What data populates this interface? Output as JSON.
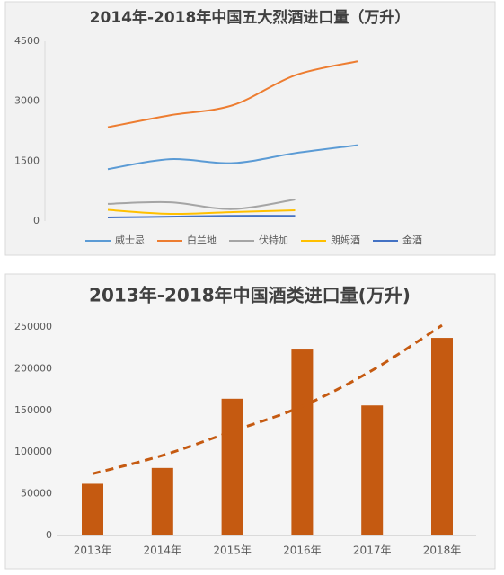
{
  "chart_data": [
    {
      "type": "line",
      "title": "2014年-2018年中国五大烈酒进口量（万升）",
      "categories": [
        null,
        null,
        null,
        null,
        null
      ],
      "ylim": [
        0,
        4500
      ],
      "yticks": [
        0,
        1500,
        3000,
        4500
      ],
      "grid": false,
      "legend": "bottom",
      "series": [
        {
          "name": "威士忌",
          "color": "#5b9bd5",
          "values": [
            1300,
            1550,
            1450,
            1700,
            1900
          ]
        },
        {
          "name": "白兰地",
          "color": "#ed7d31",
          "values": [
            2350,
            2650,
            2900,
            3650,
            4000
          ]
        },
        {
          "name": "伏特加",
          "color": "#a5a5a5",
          "values": [
            430,
            470,
            300,
            540,
            null
          ]
        },
        {
          "name": "朗姆酒",
          "color": "#ffc000",
          "values": [
            280,
            180,
            225,
            270,
            null
          ]
        },
        {
          "name": "金酒",
          "color": "#4472c4",
          "values": [
            90,
            110,
            130,
            130,
            null
          ]
        }
      ]
    },
    {
      "type": "bar",
      "title": "2013年-2018年中国酒类进口量(万升)",
      "categories": [
        "2013年",
        "2014年",
        "2015年",
        "2016年",
        "2017年",
        "2018年"
      ],
      "values": [
        62000,
        81000,
        164000,
        223000,
        156000,
        237000
      ],
      "color": "#c55a11",
      "trend": {
        "values": [
          74000,
          96000,
          125000,
          155000,
          198000,
          252000
        ],
        "color": "#c55a11"
      },
      "ylim": [
        0,
        250000
      ],
      "yticks": [
        0,
        50000,
        100000,
        150000,
        200000,
        250000
      ],
      "grid": false
    }
  ]
}
